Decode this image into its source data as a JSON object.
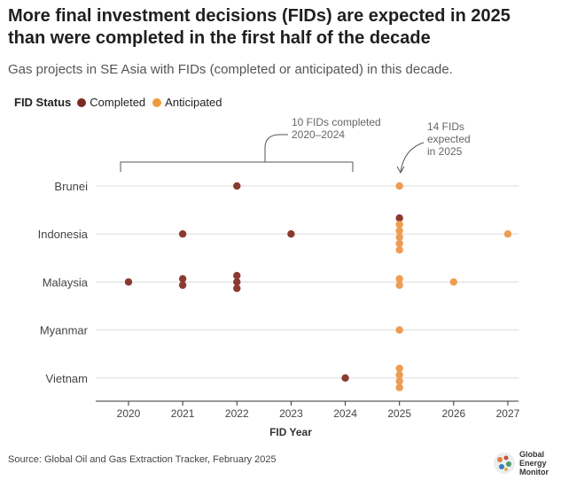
{
  "title_line1": "More final investment decisions (FIDs) are expected in 2025",
  "title_line2": "than were completed in the first half of the decade",
  "subtitle": "Gas projects in SE Asia with FIDs (completed or anticipated) in this decade.",
  "legend": {
    "title": "FID Status",
    "items": [
      {
        "label": "Completed",
        "color": "#7e2a22"
      },
      {
        "label": "Anticipated",
        "color": "#f09a40"
      }
    ]
  },
  "annotations": {
    "completed_line1": "10 FIDs completed",
    "completed_line2": "2020–2024",
    "expected_line1": "14 FIDs",
    "expected_line2": "expected",
    "expected_line3": "in 2025"
  },
  "source": "Source: Global Oil and Gas Extraction Tracker, February 2025",
  "logo": {
    "line1": "Global",
    "line2": "Energy",
    "line3": "Monitor"
  },
  "chart_data": {
    "type": "scatter",
    "xlabel": "FID Year",
    "ylabel": "",
    "xlim": [
      2019.5,
      2027
    ],
    "x_ticks": [
      2020,
      2021,
      2022,
      2023,
      2024,
      2025,
      2026,
      2027
    ],
    "categories": [
      "Brunei",
      "Indonesia",
      "Malaysia",
      "Myanmar",
      "Vietnam"
    ],
    "grid": "horizontal",
    "colors": {
      "Completed": "#8a3a30",
      "Anticipated": "#ee9c52"
    },
    "series": [
      {
        "name": "Completed",
        "points": [
          {
            "country": "Brunei",
            "year": 2022,
            "count": 1
          },
          {
            "country": "Indonesia",
            "year": 2021,
            "count": 1
          },
          {
            "country": "Indonesia",
            "year": 2023,
            "count": 1
          },
          {
            "country": "Indonesia",
            "year": 2025,
            "count": 1
          },
          {
            "country": "Malaysia",
            "year": 2020,
            "count": 1
          },
          {
            "country": "Malaysia",
            "year": 2021,
            "count": 2
          },
          {
            "country": "Malaysia",
            "year": 2022,
            "count": 3
          },
          {
            "country": "Vietnam",
            "year": 2024,
            "count": 1
          }
        ]
      },
      {
        "name": "Anticipated",
        "points": [
          {
            "country": "Brunei",
            "year": 2025,
            "count": 1
          },
          {
            "country": "Indonesia",
            "year": 2025,
            "count": 5
          },
          {
            "country": "Indonesia",
            "year": 2027,
            "count": 1
          },
          {
            "country": "Malaysia",
            "year": 2025,
            "count": 2
          },
          {
            "country": "Malaysia",
            "year": 2026,
            "count": 1
          },
          {
            "country": "Myanmar",
            "year": 2025,
            "count": 1
          },
          {
            "country": "Vietnam",
            "year": 2025,
            "count": 4
          }
        ]
      }
    ]
  }
}
